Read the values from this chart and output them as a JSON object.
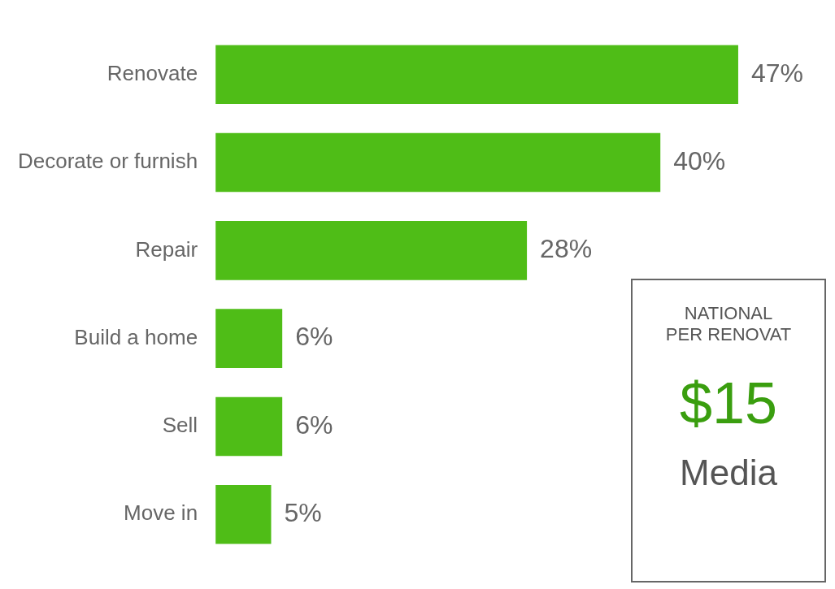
{
  "chart_data": {
    "type": "bar",
    "orientation": "horizontal",
    "tick_labels": "y",
    "categories": [
      "Renovate",
      "Decorate or furnish",
      "Repair",
      "Build a home",
      "Sell",
      "Move in"
    ],
    "values": [
      47,
      40,
      28,
      6,
      6,
      5
    ],
    "value_labels": [
      "47%",
      "40%",
      "28%",
      "6%",
      "6%",
      "5%"
    ],
    "color": "#4fbd17",
    "legend": false,
    "annotations": [
      "NATIONAL",
      "PER RENOVAT",
      "$15",
      "Media"
    ]
  }
}
